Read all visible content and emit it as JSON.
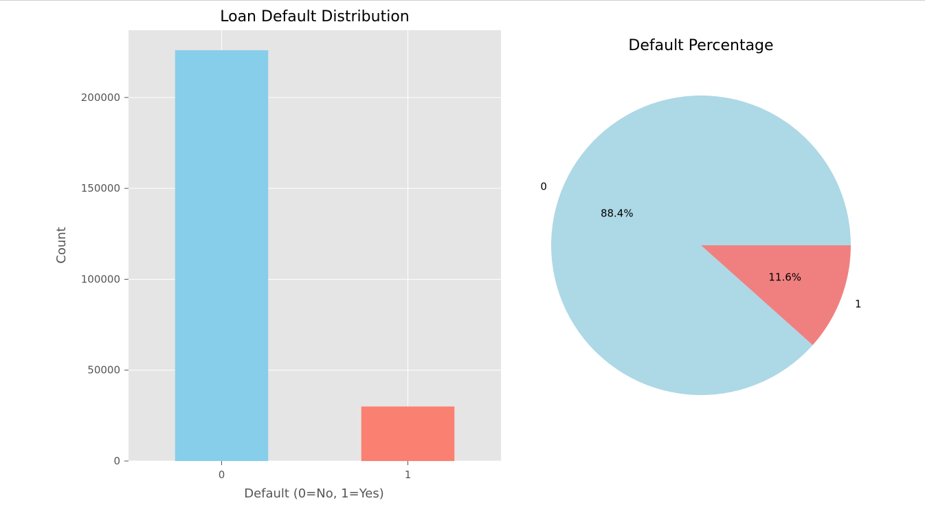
{
  "chart_data": [
    {
      "type": "bar",
      "title": "Loan Default Distribution",
      "xlabel": "Default (0=No, 1=Yes)",
      "ylabel": "Count",
      "categories": [
        "0",
        "1"
      ],
      "values": [
        226000,
        30000
      ],
      "colors": [
        "#87ceeb",
        "#fa8072"
      ],
      "ylim": [
        0,
        237000
      ],
      "yticks": [
        0,
        50000,
        100000,
        150000,
        200000
      ],
      "grid": true,
      "background": "#e5e5e5"
    },
    {
      "type": "pie",
      "title": "Default Percentage",
      "labels": [
        "0",
        "1"
      ],
      "values": [
        88.4,
        11.6
      ],
      "autopct": [
        "88.4%",
        "11.6%"
      ],
      "colors": [
        "#add8e6",
        "#f08080"
      ]
    }
  ]
}
